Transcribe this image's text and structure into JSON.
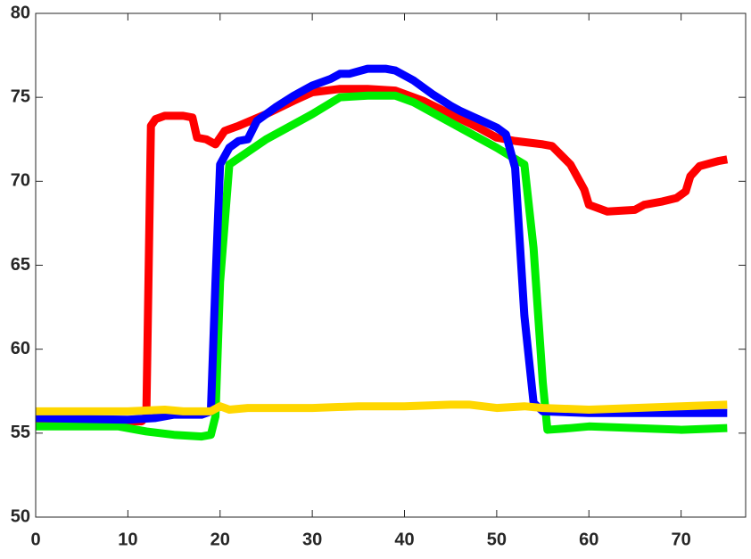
{
  "chart_data": {
    "type": "line",
    "xlim": [
      0,
      77
    ],
    "ylim": [
      50,
      80
    ],
    "xticks": [
      0,
      10,
      20,
      30,
      40,
      50,
      60,
      70
    ],
    "yticks": [
      50,
      55,
      60,
      65,
      70,
      75,
      80
    ],
    "series": [
      {
        "color": "#ff0000",
        "x": [
          0,
          5,
          10,
          11.5,
          12,
          12.5,
          13,
          14,
          16,
          17,
          17.5,
          18.5,
          19.5,
          20.5,
          22,
          25,
          28,
          30,
          33,
          36,
          39,
          42,
          45,
          48,
          50,
          52,
          55,
          56,
          58,
          59.5,
          60,
          62,
          65,
          66,
          68,
          69.5,
          70.5,
          71,
          72,
          74,
          75
        ],
        "values": [
          55.8,
          55.7,
          55.7,
          55.7,
          56,
          73.3,
          73.7,
          73.9,
          73.9,
          73.8,
          72.6,
          72.5,
          72.2,
          73,
          73.3,
          74,
          74.8,
          75.3,
          75.5,
          75.5,
          75.4,
          74.8,
          74,
          73.2,
          72.6,
          72.4,
          72.2,
          72.1,
          71,
          69.5,
          68.6,
          68.2,
          68.3,
          68.6,
          68.8,
          69,
          69.4,
          70.3,
          70.9,
          71.2,
          71.3
        ]
      },
      {
        "color": "#00ee00",
        "x": [
          0,
          9,
          12,
          15,
          18,
          19,
          19.5,
          20,
          21,
          25,
          30,
          33,
          36,
          39,
          41,
          45,
          50,
          53,
          54,
          55,
          55.5,
          58,
          60,
          65,
          70,
          75
        ],
        "values": [
          55.4,
          55.4,
          55.1,
          54.9,
          54.8,
          54.9,
          56,
          64,
          71,
          72.5,
          74,
          75,
          75.1,
          75.1,
          74.7,
          73.5,
          72,
          71,
          66,
          58,
          55.2,
          55.3,
          55.4,
          55.3,
          55.2,
          55.3
        ]
      },
      {
        "color": "#0000ff",
        "x": [
          0,
          10,
          13,
          15,
          18,
          19,
          19.5,
          20,
          21,
          22,
          23,
          24,
          26,
          28,
          30,
          32,
          33,
          34,
          36,
          38,
          39,
          41,
          43,
          45,
          46,
          48,
          50,
          51,
          52,
          53,
          54,
          55,
          60,
          65,
          70,
          75
        ],
        "values": [
          55.9,
          55.8,
          55.9,
          56.1,
          56.1,
          56.3,
          64,
          71,
          72,
          72.4,
          72.5,
          73.6,
          74.4,
          75.1,
          75.7,
          76.1,
          76.4,
          76.4,
          76.7,
          76.7,
          76.6,
          76,
          75.2,
          74.5,
          74.2,
          73.7,
          73.2,
          72.8,
          70.8,
          62,
          56.8,
          56.3,
          56.2,
          56.2,
          56.2,
          56.2
        ]
      },
      {
        "color": "#ffd700",
        "x": [
          0,
          5,
          10,
          14,
          16,
          19,
          20,
          21,
          23,
          25,
          30,
          35,
          40,
          45,
          47,
          50,
          53,
          55,
          60,
          65,
          70,
          75
        ],
        "values": [
          56.3,
          56.3,
          56.3,
          56.4,
          56.3,
          56.3,
          56.6,
          56.4,
          56.5,
          56.5,
          56.5,
          56.6,
          56.6,
          56.7,
          56.7,
          56.5,
          56.6,
          56.5,
          56.4,
          56.5,
          56.6,
          56.7
        ]
      }
    ]
  }
}
